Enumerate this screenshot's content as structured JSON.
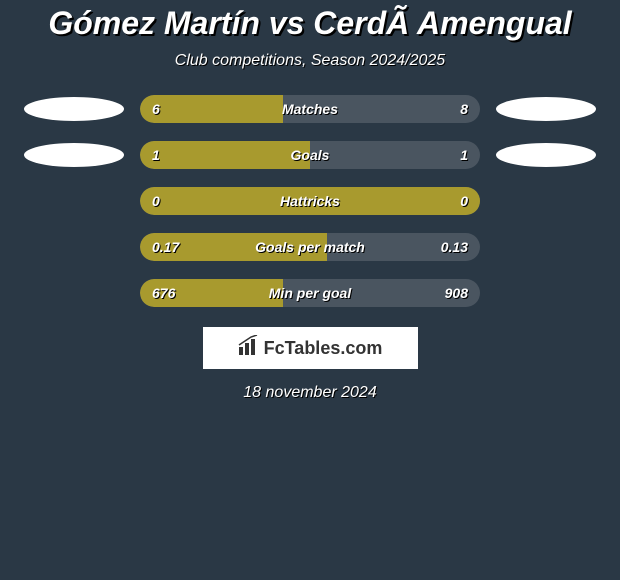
{
  "title": "Gómez Martín vs CerdÃ  Amengual",
  "subtitle": "Club competitions, Season 2024/2025",
  "rows": [
    {
      "label": "Matches",
      "left_value": "6",
      "right_value": "8",
      "left_fill_pct": 42,
      "show_ellipse": true
    },
    {
      "label": "Goals",
      "left_value": "1",
      "right_value": "1",
      "left_fill_pct": 50,
      "show_ellipse": true
    },
    {
      "label": "Hattricks",
      "left_value": "0",
      "right_value": "0",
      "left_fill_pct": 100,
      "show_ellipse": false
    },
    {
      "label": "Goals per match",
      "left_value": "0.17",
      "right_value": "0.13",
      "left_fill_pct": 55,
      "show_ellipse": false
    },
    {
      "label": "Min per goal",
      "left_value": "676",
      "right_value": "908",
      "left_fill_pct": 42,
      "show_ellipse": false
    }
  ],
  "brand": "FcTables.com",
  "date": "18 november 2024",
  "colors": {
    "background": "#2a3845",
    "bar_bg": "#4a5560",
    "bar_fill": "#a89a2e",
    "text": "#ffffff",
    "ellipse": "#ffffff"
  }
}
